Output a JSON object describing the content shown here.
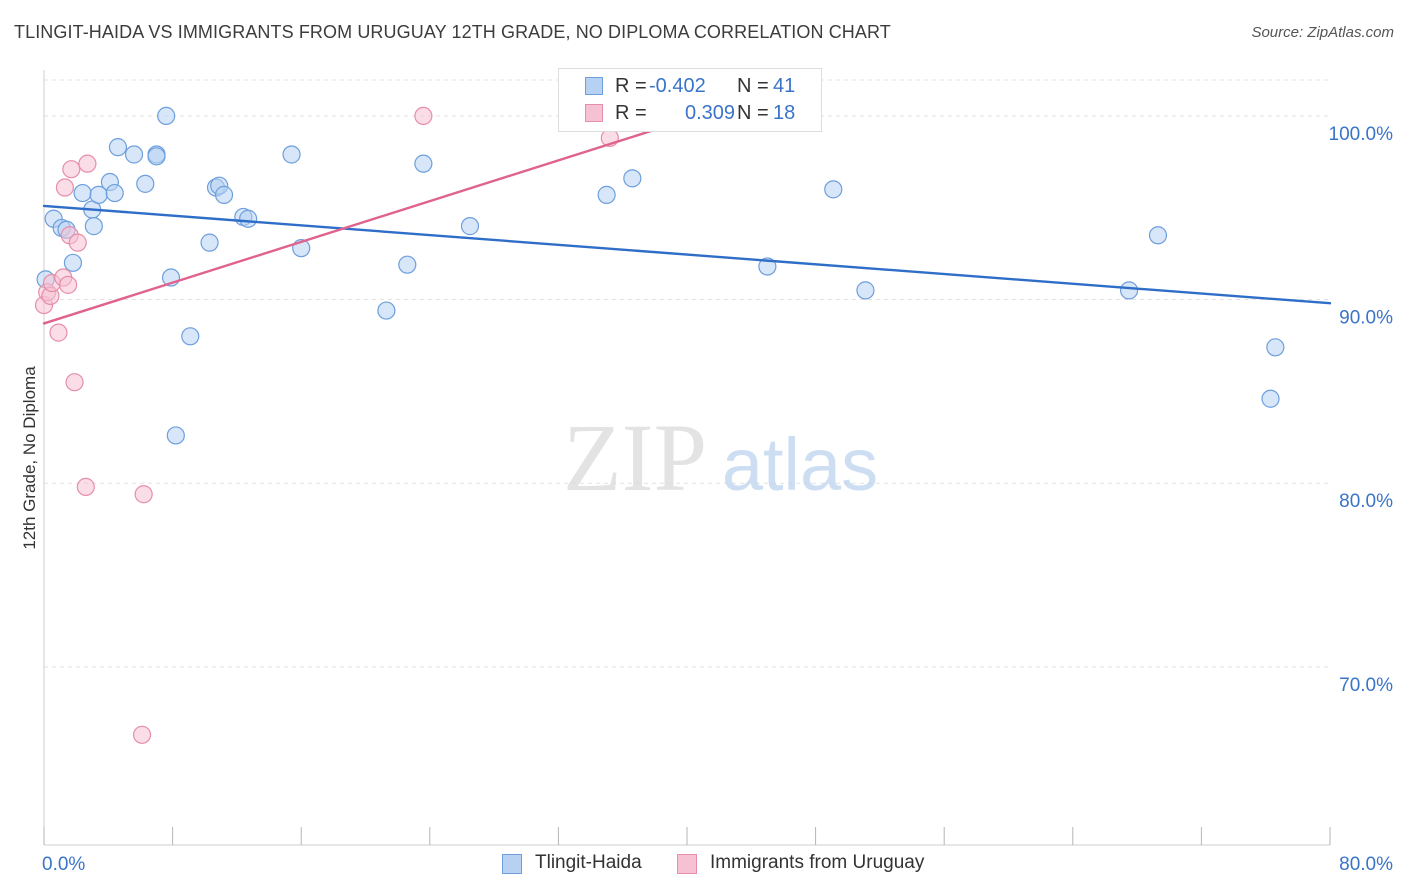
{
  "header": {
    "title": "TLINGIT-HAIDA VS IMMIGRANTS FROM URUGUAY 12TH GRADE, NO DIPLOMA CORRELATION CHART",
    "source": "Source: ZipAtlas.com"
  },
  "watermark": {
    "zip": "ZIP",
    "atlas": "atlas"
  },
  "legend": {
    "rows": [
      {
        "r_label": "R =",
        "r_value": "-0.402",
        "n_label": "N =",
        "n_value": "41"
      },
      {
        "r_label": "R =",
        "r_value": "0.309",
        "n_label": "N =",
        "n_value": "18"
      }
    ]
  },
  "bottom_legend": {
    "items": [
      {
        "label": "Tlingit-Haida"
      },
      {
        "label": "Immigrants from Uruguay"
      }
    ]
  },
  "colors": {
    "blue_fill": "#b7d1f2",
    "blue_stroke": "#6d9fdd",
    "blue_line": "#2f6ec8",
    "pink_fill": "#f6c1d2",
    "pink_stroke": "#e68eab",
    "pink_line": "#e0628e",
    "tick_label": "#3a74c8",
    "grid": "#e2e2e2"
  },
  "chart_data": {
    "type": "scatter",
    "title": "TLINGIT-HAIDA VS IMMIGRANTS FROM URUGUAY 12TH GRADE, NO DIPLOMA CORRELATION CHART",
    "xlabel": "",
    "ylabel": "12th Grade, No Diploma",
    "xlim": [
      0,
      80
    ],
    "ylim": [
      60.3,
      102.5
    ],
    "x_tick_labels": [
      {
        "value": 0,
        "label": "0.0%"
      },
      {
        "value": 80,
        "label": "80.0%"
      }
    ],
    "y_tick_labels": [
      {
        "value": 100,
        "label": "100.0%"
      },
      {
        "value": 90,
        "label": "90.0%"
      },
      {
        "value": 80,
        "label": "80.0%"
      },
      {
        "value": 70,
        "label": "70.0%"
      }
    ],
    "x_minor_ticks": [
      0,
      8,
      16,
      24,
      32,
      40,
      48,
      56,
      64,
      72,
      80
    ],
    "grid": true,
    "legend_position": "top-center",
    "series": [
      {
        "name": "Tlingit-Haida",
        "color": "#6d9fdd",
        "r": -0.402,
        "n": 41,
        "trend": {
          "x": [
            0,
            80
          ],
          "y": [
            95.1,
            89.8
          ]
        },
        "points": [
          [
            0.1,
            91.1
          ],
          [
            0.6,
            94.4
          ],
          [
            1.1,
            93.9
          ],
          [
            1.4,
            93.8
          ],
          [
            1.8,
            92.0
          ],
          [
            2.4,
            95.8
          ],
          [
            3.0,
            94.9
          ],
          [
            3.1,
            94.0
          ],
          [
            3.4,
            95.7
          ],
          [
            4.1,
            96.4
          ],
          [
            4.4,
            95.8
          ],
          [
            4.6,
            98.3
          ],
          [
            5.6,
            97.9
          ],
          [
            6.3,
            96.3
          ],
          [
            7.0,
            97.9
          ],
          [
            7.0,
            97.8
          ],
          [
            7.6,
            100.0
          ],
          [
            7.9,
            91.2
          ],
          [
            8.2,
            82.6
          ],
          [
            9.1,
            88.0
          ],
          [
            10.3,
            93.1
          ],
          [
            10.7,
            96.1
          ],
          [
            10.9,
            96.2
          ],
          [
            11.2,
            95.7
          ],
          [
            12.4,
            94.5
          ],
          [
            12.7,
            94.4
          ],
          [
            15.4,
            97.9
          ],
          [
            16.0,
            92.8
          ],
          [
            21.3,
            89.4
          ],
          [
            22.6,
            91.9
          ],
          [
            23.6,
            97.4
          ],
          [
            26.5,
            94.0
          ],
          [
            35.0,
            95.7
          ],
          [
            36.6,
            96.6
          ],
          [
            45.0,
            91.8
          ],
          [
            49.1,
            96.0
          ],
          [
            51.1,
            90.5
          ],
          [
            67.5,
            90.5
          ],
          [
            69.3,
            93.5
          ],
          [
            76.3,
            84.6
          ],
          [
            76.6,
            87.4
          ]
        ]
      },
      {
        "name": "Immigrants from Uruguay",
        "color": "#e68eab",
        "r": 0.309,
        "n": 18,
        "trend": {
          "x": [
            0,
            40
          ],
          "y": [
            88.7,
            99.8
          ]
        },
        "points": [
          [
            0.0,
            89.7
          ],
          [
            0.2,
            90.4
          ],
          [
            0.4,
            90.2
          ],
          [
            0.5,
            90.9
          ],
          [
            0.9,
            88.2
          ],
          [
            1.2,
            91.2
          ],
          [
            1.3,
            96.1
          ],
          [
            1.5,
            90.8
          ],
          [
            1.6,
            93.5
          ],
          [
            1.7,
            97.1
          ],
          [
            1.9,
            85.5
          ],
          [
            2.1,
            93.1
          ],
          [
            2.6,
            79.8
          ],
          [
            2.7,
            97.4
          ],
          [
            6.2,
            79.4
          ],
          [
            6.1,
            66.3
          ],
          [
            23.6,
            100.0
          ],
          [
            35.2,
            98.8
          ]
        ]
      }
    ]
  }
}
